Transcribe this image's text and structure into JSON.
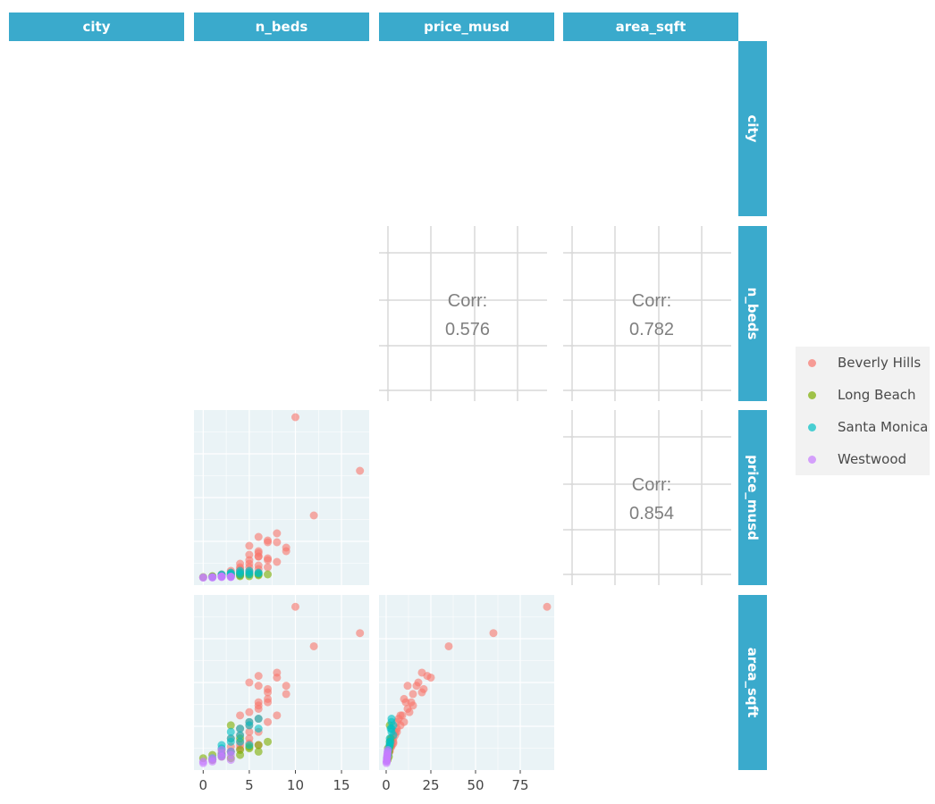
{
  "variables": [
    "city",
    "n_beds",
    "price_musd",
    "area_sqft"
  ],
  "legend": {
    "items": [
      {
        "label": "Beverly Hills",
        "color": "#f8766d"
      },
      {
        "label": "Long Beach",
        "color": "#7cae00"
      },
      {
        "label": "Santa Monica",
        "color": "#00bfc4"
      },
      {
        "label": "Westwood",
        "color": "#c77cff"
      }
    ]
  },
  "chart_data": {
    "type": "scatter",
    "title": "",
    "grid": true,
    "legend_placement": "right",
    "correlations": [
      {
        "row": "n_beds",
        "col": "price_musd",
        "label": "Corr:",
        "value": "0.576"
      },
      {
        "row": "n_beds",
        "col": "area_sqft",
        "label": "Corr:",
        "value": "0.782"
      },
      {
        "row": "price_musd",
        "col": "area_sqft",
        "label": "Corr:",
        "value": "0.854"
      }
    ],
    "axes": {
      "n_beds": {
        "ticks": [
          0,
          5,
          10,
          15
        ],
        "range": [
          -1,
          18
        ]
      },
      "price_musd": {
        "ticks": [
          0,
          25,
          50,
          75
        ],
        "range": [
          -4,
          94
        ],
        "tick_labels_visible": false
      },
      "area_sqft": {
        "ticks": [],
        "range": [
          0,
          1
        ]
      }
    },
    "series": [
      {
        "name": "Beverly Hills",
        "color": "#f8766d",
        "points": [
          [
            10,
            90,
            0.96
          ],
          [
            17,
            60,
            0.8
          ],
          [
            12,
            35,
            0.72
          ],
          [
            8,
            20,
            0.56
          ],
          [
            8,
            25,
            0.53
          ],
          [
            6,
            23,
            0.54
          ],
          [
            5,
            18,
            0.5
          ],
          [
            7,
            21,
            0.46
          ],
          [
            7,
            20,
            0.44
          ],
          [
            9,
            17,
            0.48
          ],
          [
            9,
            15,
            0.43
          ],
          [
            6,
            12,
            0.48
          ],
          [
            6,
            14,
            0.38
          ],
          [
            6,
            15,
            0.36
          ],
          [
            6,
            12,
            0.34
          ],
          [
            5,
            13,
            0.32
          ],
          [
            7,
            10,
            0.4
          ],
          [
            7,
            11,
            0.38
          ],
          [
            8,
            9,
            0.3
          ],
          [
            4,
            8,
            0.3
          ],
          [
            5,
            10,
            0.26
          ],
          [
            5,
            8,
            0.24
          ],
          [
            4,
            6,
            0.22
          ],
          [
            6,
            7,
            0.28
          ],
          [
            5,
            6,
            0.2
          ],
          [
            4,
            5,
            0.18
          ],
          [
            7,
            6,
            0.26
          ],
          [
            6,
            5,
            0.2
          ],
          [
            3,
            4,
            0.16
          ],
          [
            4,
            4,
            0.14
          ],
          [
            5,
            4,
            0.13
          ],
          [
            4,
            3,
            0.12
          ],
          [
            3,
            3,
            0.11
          ],
          [
            2,
            2,
            0.09
          ],
          [
            5,
            3,
            0.16
          ],
          [
            6,
            3,
            0.12
          ],
          [
            3,
            2,
            0.08
          ],
          [
            4,
            2,
            0.1
          ],
          [
            2,
            1,
            0.06
          ]
        ]
      },
      {
        "name": "Long Beach",
        "color": "#7cae00",
        "points": [
          [
            0,
            0.5,
            0.04
          ],
          [
            1,
            1,
            0.06
          ],
          [
            2,
            1,
            0.07
          ],
          [
            3,
            1.5,
            0.08
          ],
          [
            4,
            1.5,
            0.09
          ],
          [
            5,
            1,
            0.1
          ],
          [
            6,
            2,
            0.12
          ],
          [
            7,
            2,
            0.14
          ],
          [
            3,
            2,
            0.24
          ],
          [
            2,
            1.5,
            0.05
          ],
          [
            4,
            2.5,
            0.16
          ],
          [
            5,
            2,
            0.11
          ],
          [
            1,
            0.8,
            0.03
          ],
          [
            3,
            1,
            0.04
          ],
          [
            6,
            1.5,
            0.08
          ],
          [
            4,
            1,
            0.06
          ]
        ]
      },
      {
        "name": "Santa Monica",
        "color": "#00bfc4",
        "points": [
          [
            3,
            3,
            0.2
          ],
          [
            4,
            3,
            0.22
          ],
          [
            5,
            4,
            0.24
          ],
          [
            3,
            2,
            0.16
          ],
          [
            4,
            2,
            0.14
          ],
          [
            2,
            1.5,
            0.1
          ],
          [
            3,
            1,
            0.08
          ],
          [
            5,
            3,
            0.26
          ],
          [
            6,
            3,
            0.28
          ],
          [
            4,
            4,
            0.18
          ],
          [
            2,
            1,
            0.06
          ],
          [
            1,
            0.5,
            0.04
          ],
          [
            6,
            2.5,
            0.22
          ],
          [
            5,
            2,
            0.12
          ],
          [
            3,
            2.5,
            0.14
          ],
          [
            2,
            2,
            0.12
          ]
        ]
      },
      {
        "name": "Westwood",
        "color": "#c77cff",
        "points": [
          [
            0,
            0.3,
            0.02
          ],
          [
            1,
            0.4,
            0.03
          ],
          [
            2,
            0.5,
            0.05
          ],
          [
            2,
            0.8,
            0.07
          ],
          [
            3,
            0.6,
            0.06
          ],
          [
            1,
            0.5,
            0.04
          ],
          [
            2,
            1,
            0.09
          ],
          [
            3,
            0.5,
            0.03
          ],
          [
            1,
            0.3,
            0.02
          ],
          [
            0,
            0.2,
            0.01
          ],
          [
            2,
            0.7,
            0.05
          ],
          [
            3,
            0.8,
            0.08
          ]
        ]
      }
    ]
  }
}
